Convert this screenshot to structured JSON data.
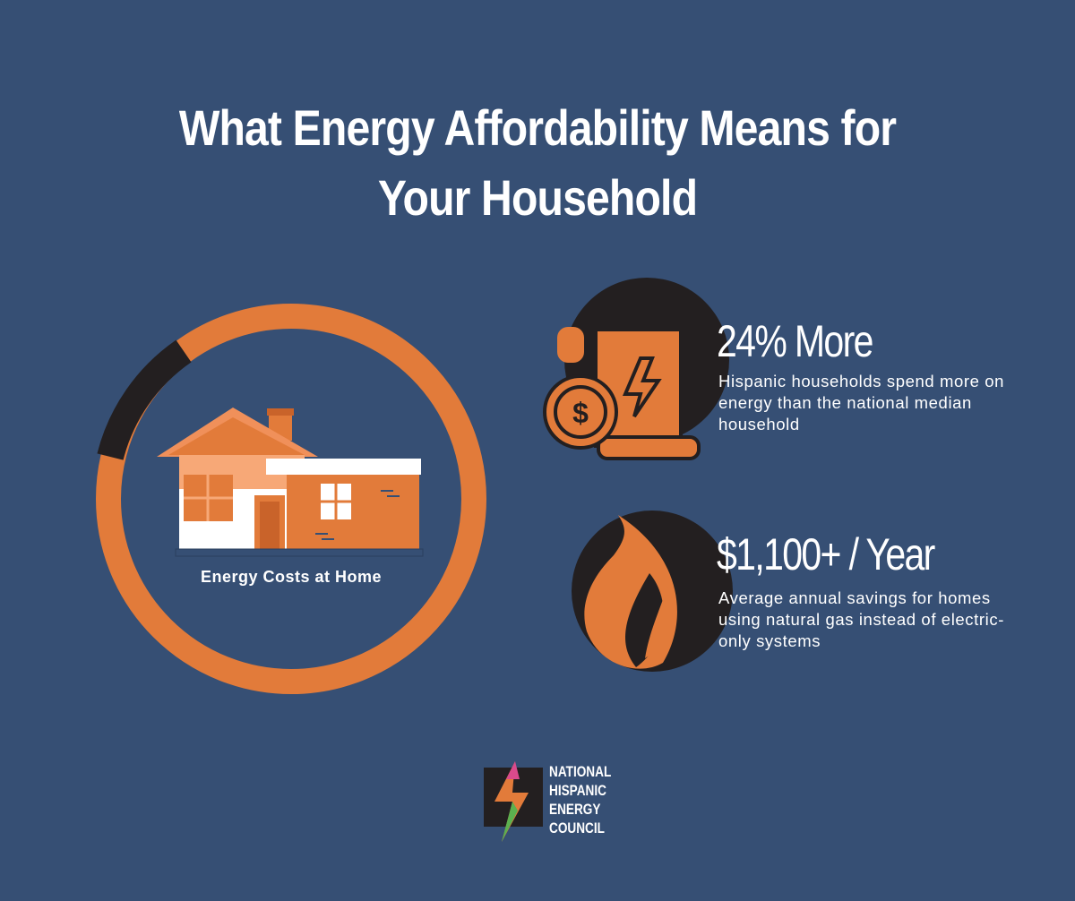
{
  "title": [
    "What Energy Affordability Means for",
    "Your Household"
  ],
  "gauge": {
    "label": "Energy Costs at Home"
  },
  "stats": [
    {
      "headline": "24% More",
      "description": "Hispanic households spend more on energy than the national median household"
    },
    {
      "headline": "$1,100+ / Year",
      "description": "Average annual savings for homes using natural gas instead of electric-only systems"
    }
  ],
  "logo": {
    "lines": [
      "NATIONAL",
      "HISPANIC",
      "ENERGY",
      "COUNCIL"
    ]
  }
}
